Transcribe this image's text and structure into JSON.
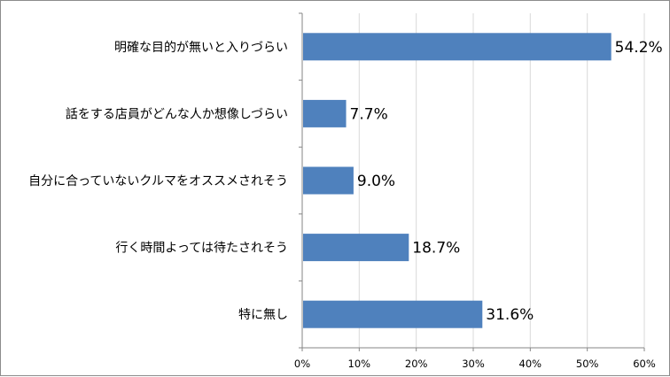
{
  "chart_data": {
    "type": "bar",
    "orientation": "horizontal",
    "categories": [
      "明確な目的が無いと入りづらい",
      "話をする店員がどんな人か想像しづらい",
      "自分に合っていないクルマをオススメされそう",
      "行く時間よっては待たされそう",
      "特に無し"
    ],
    "values": [
      54.2,
      7.7,
      9.0,
      18.7,
      31.6
    ],
    "value_labels": [
      "54.2%",
      "7.7%",
      "9.0%",
      "18.7%",
      "31.6%"
    ],
    "x_ticks": [
      "0%",
      "10%",
      "20%",
      "30%",
      "40%",
      "50%",
      "60%"
    ],
    "xlim": [
      0,
      60
    ],
    "title": "",
    "xlabel": "",
    "ylabel": "",
    "grid": "vertical",
    "legend": "none",
    "colors": {
      "bar": "#4f81bd",
      "gridline": "#d9d9d9",
      "axis": "#868686",
      "frame": "#8c8c8c"
    }
  }
}
